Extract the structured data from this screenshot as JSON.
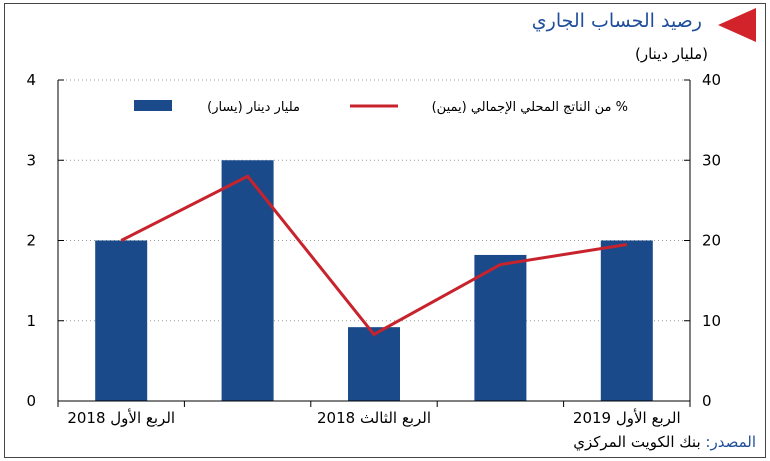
{
  "header": {
    "title": "رصيد الحساب الجاري",
    "unit": "(مليار دينار)"
  },
  "footer": {
    "source_label": "المصدر:",
    "source_name": "بنك الكويت المركزي"
  },
  "colors": {
    "bar": "#1a4a8a",
    "line": "#c8232c",
    "accent": "#d2232a",
    "title": "#1f4e9a"
  },
  "chart_data": {
    "type": "bar",
    "categories": [
      "الربع الأول 2018",
      "",
      "الربع الثالث 2018",
      "",
      "الربع الأول 2019"
    ],
    "series": [
      {
        "name": "مليار دينار (يسار)",
        "type": "bar",
        "axis": "left",
        "values": [
          2.0,
          3.0,
          0.92,
          1.82,
          2.0
        ]
      },
      {
        "name": "% من الناتج المحلي الإجمالي (يمين)",
        "type": "line",
        "axis": "right",
        "values": [
          20,
          28,
          8.3,
          17,
          19.5
        ]
      }
    ],
    "left_axis": {
      "ylim": [
        0,
        4
      ],
      "ticks": [
        "0",
        "1",
        "2",
        "3",
        "4"
      ]
    },
    "right_axis": {
      "ylim": [
        0,
        40
      ],
      "ticks": [
        "0",
        "10",
        "20",
        "30",
        "40"
      ]
    },
    "grid": true,
    "legend_position": "top"
  }
}
